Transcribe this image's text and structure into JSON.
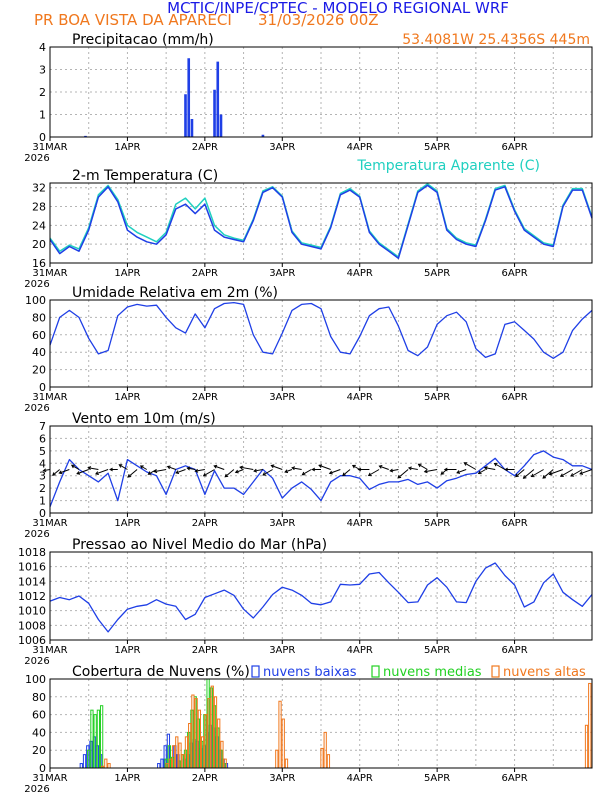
{
  "header": {
    "title": "MCTIC/INPE/CPTEC - MODELO REGIONAL WRF",
    "location": "PR BOA VISTA DA APARECI",
    "run": "31/03/2026 00Z",
    "coords": "53.4081W 25.4356S 445m"
  },
  "colors": {
    "title": "#1a1ae6",
    "orange": "#f0781e",
    "blue": "#1f3fe6",
    "cyan": "#20d0c0",
    "green": "#22d022",
    "grid": "#b4b4b4"
  },
  "x_axis": {
    "day_labels": [
      "31MAR",
      "1APR",
      "2APR",
      "3APR",
      "4APR",
      "5APR",
      "6APR"
    ],
    "year_label": "2026"
  },
  "chart_data": [
    {
      "type": "bar",
      "title": "Precipitacao (mm/h)",
      "ylim": [
        0,
        4
      ],
      "yticks": [
        "0",
        "1",
        "2",
        "3",
        "4"
      ],
      "hours": [
        11,
        42,
        43,
        44,
        51,
        52,
        53,
        66
      ],
      "values": [
        0.05,
        1.9,
        3.5,
        0.8,
        2.1,
        3.35,
        1.0,
        0.1
      ]
    },
    {
      "type": "line",
      "title": "2-m Temperatura (C)",
      "legend": "Temperatura Aparente (C)",
      "ylim": [
        16,
        33
      ],
      "yticks": [
        "16",
        "20",
        "24",
        "28",
        "32"
      ],
      "series": [
        {
          "name": "Temperatura",
          "x": [
            0,
            3,
            6,
            9,
            12,
            15,
            18,
            21,
            24,
            27,
            30,
            33,
            36,
            39,
            42,
            45,
            48,
            51,
            54,
            57,
            60,
            63,
            66,
            69,
            72,
            75,
            78,
            81,
            84,
            87,
            90,
            93,
            96,
            99,
            102,
            105,
            108,
            111,
            114,
            117,
            120,
            123,
            126,
            129,
            132,
            135,
            138,
            141,
            144,
            147,
            150,
            153,
            156,
            159,
            162,
            165,
            168
          ],
          "values": [
            21,
            18,
            19.5,
            18.5,
            23,
            30,
            32.2,
            29,
            23,
            21.5,
            20.5,
            20,
            22,
            27.5,
            28.5,
            26.5,
            28.5,
            23,
            21.5,
            21,
            20.5,
            25,
            31,
            32,
            30,
            22.5,
            20,
            19.5,
            19,
            23.5,
            30.5,
            31.5,
            30,
            22.5,
            20,
            18.5,
            17,
            24,
            31,
            32.5,
            31,
            23,
            21,
            20,
            19.5,
            25,
            31.5,
            32.2,
            27,
            23,
            21.5,
            20,
            19.5,
            28,
            31.5,
            31.5,
            25.5
          ]
        },
        {
          "name": "Temperatura Aparente",
          "x": [
            0,
            3,
            6,
            9,
            12,
            15,
            18,
            21,
            24,
            27,
            30,
            33,
            36,
            39,
            42,
            45,
            48,
            51,
            54,
            57,
            60,
            63,
            66,
            69,
            72,
            75,
            78,
            81,
            84,
            87,
            90,
            93,
            96,
            99,
            102,
            105,
            108,
            111,
            114,
            117,
            120,
            123,
            126,
            129,
            132,
            135,
            138,
            141,
            144,
            147,
            150,
            153,
            156,
            159,
            162,
            165,
            168
          ],
          "values": [
            21.3,
            18.5,
            19.8,
            19,
            23.5,
            30.5,
            32.5,
            29.5,
            24,
            22.5,
            21.5,
            20.5,
            22.5,
            28.5,
            29.8,
            27.5,
            29.8,
            24,
            22,
            21.3,
            20.8,
            25.3,
            31.3,
            32.2,
            30.2,
            22.8,
            20.3,
            19.8,
            19.3,
            23.8,
            30.8,
            31.8,
            30.2,
            22.8,
            20.3,
            18.8,
            17.3,
            24.3,
            31.3,
            32.8,
            31.3,
            23.3,
            21.3,
            20.3,
            19.8,
            25.3,
            31.8,
            32.5,
            27.3,
            23.3,
            21.8,
            20.3,
            19.8,
            28.3,
            31.8,
            31.8,
            25.8
          ]
        }
      ]
    },
    {
      "type": "line",
      "title": "Umidade Relativa em 2m (%)",
      "ylim": [
        0,
        100
      ],
      "yticks": [
        "0",
        "20",
        "40",
        "60",
        "80",
        "100"
      ],
      "series": [
        {
          "name": "Umidade Relativa",
          "x": [
            0,
            3,
            6,
            9,
            12,
            15,
            18,
            21,
            24,
            27,
            30,
            33,
            36,
            39,
            42,
            45,
            48,
            51,
            54,
            57,
            60,
            63,
            66,
            69,
            72,
            75,
            78,
            81,
            84,
            87,
            90,
            93,
            96,
            99,
            102,
            105,
            108,
            111,
            114,
            117,
            120,
            123,
            126,
            129,
            132,
            135,
            138,
            141,
            144,
            147,
            150,
            153,
            156,
            159,
            162,
            165,
            168
          ],
          "values": [
            48,
            80,
            88,
            80,
            56,
            38,
            42,
            82,
            92,
            95,
            93,
            94,
            80,
            68,
            62,
            84,
            68,
            90,
            96,
            97,
            95,
            60,
            40,
            38,
            62,
            88,
            95,
            96,
            90,
            58,
            40,
            38,
            58,
            82,
            90,
            92,
            70,
            42,
            36,
            46,
            72,
            82,
            86,
            75,
            44,
            34,
            38,
            72,
            75,
            65,
            55,
            40,
            33,
            40,
            65,
            78,
            88
          ]
        }
      ]
    },
    {
      "type": "line",
      "title": "Vento em 10m (m/s)",
      "ylim": [
        0,
        7
      ],
      "yticks": [
        "0",
        "1",
        "2",
        "3",
        "4",
        "5",
        "6",
        "7"
      ],
      "series": [
        {
          "name": "Vento",
          "x": [
            0,
            3,
            6,
            9,
            12,
            15,
            18,
            21,
            24,
            27,
            30,
            33,
            36,
            39,
            42,
            45,
            48,
            51,
            54,
            57,
            60,
            63,
            66,
            69,
            72,
            75,
            78,
            81,
            84,
            87,
            90,
            93,
            96,
            99,
            102,
            105,
            108,
            111,
            114,
            117,
            120,
            123,
            126,
            129,
            132,
            135,
            138,
            141,
            144,
            147,
            150,
            153,
            156,
            159,
            162,
            165,
            168
          ],
          "values": [
            0.5,
            2.5,
            4.3,
            3.5,
            3.0,
            2.5,
            3.2,
            1.0,
            4.3,
            3.8,
            3.3,
            3.0,
            1.5,
            3.5,
            3.8,
            3.5,
            1.5,
            3.4,
            2.0,
            2.0,
            1.5,
            2.5,
            3.5,
            2.8,
            1.2,
            2.0,
            2.5,
            1.9,
            1.0,
            2.5,
            3.0,
            3.0,
            2.8,
            1.9,
            2.3,
            2.5,
            2.5,
            2.7,
            2.3,
            2.5,
            2.0,
            2.6,
            2.8,
            3.1,
            3.2,
            3.8,
            4.4,
            3.5,
            3.0,
            3.8,
            4.7,
            5.0,
            4.5,
            4.3,
            3.8,
            3.8,
            3.5
          ]
        }
      ],
      "vectors": [
        [
          50,
          170
        ],
        [
          120,
          140
        ],
        [
          170,
          160
        ],
        [
          100,
          210
        ],
        [
          220,
          160
        ],
        [
          160,
          190
        ],
        [
          240,
          160
        ],
        [
          80,
          180
        ],
        [
          130,
          210
        ],
        [
          200,
          140
        ],
        [
          60,
          210
        ],
        [
          130,
          150
        ],
        [
          210,
          170
        ],
        [
          110,
          200
        ],
        [
          150,
          160
        ],
        [
          90,
          190
        ],
        [
          140,
          170
        ],
        [
          230,
          150
        ],
        [
          170,
          200
        ],
        [
          190,
          140
        ],
        [
          100,
          160
        ],
        [
          250,
          190
        ],
        [
          120,
          170
        ],
        [
          180,
          150
        ],
        [
          200,
          200
        ],
        [
          70,
          160
        ],
        [
          140,
          190
        ],
        [
          160,
          150
        ],
        [
          110,
          180
        ],
        [
          220,
          200
        ],
        [
          190,
          160
        ],
        [
          130,
          140
        ],
        [
          90,
          210
        ],
        [
          180,
          180
        ],
        [
          210,
          150
        ],
        [
          150,
          200
        ],
        [
          100,
          170
        ],
        [
          240,
          140
        ],
        [
          120,
          190
        ],
        [
          160,
          210
        ],
        [
          230,
          170
        ],
        [
          70,
          140
        ],
        [
          200,
          180
        ],
        [
          140,
          160
        ],
        [
          250,
          210
        ],
        [
          90,
          150
        ],
        [
          170,
          190
        ],
        [
          210,
          210
        ],
        [
          130,
          180
        ],
        [
          180,
          140
        ],
        [
          260,
          140
        ],
        [
          270,
          150
        ],
        [
          250,
          140
        ],
        [
          280,
          160
        ],
        [
          260,
          150
        ],
        [
          240,
          150
        ],
        [
          230,
          160
        ]
      ]
    },
    {
      "type": "line",
      "title": "Pressao ao Nivel Medio do Mar (hPa)",
      "ylim": [
        1006,
        1018
      ],
      "yticks": [
        "1006",
        "1008",
        "1010",
        "1012",
        "1014",
        "1016",
        "1018"
      ],
      "series": [
        {
          "name": "Pressao",
          "x": [
            0,
            3,
            6,
            9,
            12,
            15,
            18,
            21,
            24,
            27,
            30,
            33,
            36,
            39,
            42,
            45,
            48,
            51,
            54,
            57,
            60,
            63,
            66,
            69,
            72,
            75,
            78,
            81,
            84,
            87,
            90,
            93,
            96,
            99,
            102,
            105,
            108,
            111,
            114,
            117,
            120,
            123,
            126,
            129,
            132,
            135,
            138,
            141,
            144,
            147,
            150,
            153,
            156,
            159,
            162,
            165,
            168
          ],
          "values": [
            1011.3,
            1011.8,
            1011.5,
            1012.0,
            1011.0,
            1008.8,
            1007.1,
            1008.8,
            1010.2,
            1010.6,
            1010.8,
            1011.5,
            1010.9,
            1010.6,
            1008.8,
            1009.5,
            1011.8,
            1012.3,
            1012.8,
            1012.1,
            1010.2,
            1009.0,
            1010.5,
            1012.2,
            1013.2,
            1012.8,
            1012.1,
            1011.0,
            1010.8,
            1011.2,
            1013.6,
            1013.5,
            1013.6,
            1015.0,
            1015.2,
            1013.8,
            1012.5,
            1011.1,
            1011.2,
            1013.5,
            1014.5,
            1013.2,
            1011.2,
            1011.1,
            1014.0,
            1015.8,
            1016.5,
            1014.8,
            1013.5,
            1010.5,
            1011.2,
            1013.8,
            1015.0,
            1012.5,
            1011.5,
            1010.6,
            1012.2
          ]
        }
      ]
    },
    {
      "type": "bar",
      "title": "Cobertura de Nuvens (%)",
      "ylim": [
        0,
        100
      ],
      "yticks": [
        "0",
        "20",
        "40",
        "60",
        "80",
        "100"
      ],
      "legend": [
        "nuvens baixas",
        "nuvens medias",
        "nuvens altas"
      ],
      "series": [
        {
          "name": "nuvens baixas",
          "hours": [
            10,
            11,
            12,
            13,
            14,
            15,
            16,
            34,
            35,
            36,
            37,
            39,
            40,
            42,
            43,
            44,
            45,
            46,
            47,
            48,
            49,
            50,
            51,
            52,
            53,
            54,
            55
          ],
          "values": [
            5,
            15,
            25,
            30,
            35,
            25,
            15,
            5,
            10,
            25,
            38,
            25,
            15,
            10,
            15,
            28,
            32,
            30,
            22,
            25,
            40,
            48,
            45,
            35,
            20,
            10,
            5
          ]
        },
        {
          "name": "nuvens medias",
          "hours": [
            12,
            13,
            14,
            15,
            16,
            36,
            37,
            38,
            40,
            41,
            42,
            43,
            44,
            45,
            46,
            47,
            48,
            49,
            50,
            51,
            52,
            53,
            54
          ],
          "values": [
            20,
            65,
            60,
            65,
            70,
            10,
            25,
            12,
            8,
            15,
            20,
            40,
            65,
            80,
            55,
            30,
            60,
            100,
            90,
            70,
            45,
            20,
            5
          ]
        },
        {
          "name": "nuvens altas",
          "hours": [
            16,
            17,
            18,
            36,
            37,
            38,
            39,
            40,
            41,
            42,
            43,
            44,
            45,
            46,
            47,
            48,
            49,
            50,
            51,
            52,
            53,
            54,
            70,
            71,
            72,
            73,
            84,
            85,
            86,
            166,
            167
          ],
          "values": [
            2,
            10,
            5,
            5,
            10,
            25,
            35,
            28,
            15,
            35,
            50,
            82,
            78,
            65,
            35,
            60,
            78,
            92,
            80,
            55,
            30,
            10,
            20,
            75,
            55,
            10,
            22,
            40,
            15,
            48,
            95
          ]
        }
      ]
    }
  ]
}
